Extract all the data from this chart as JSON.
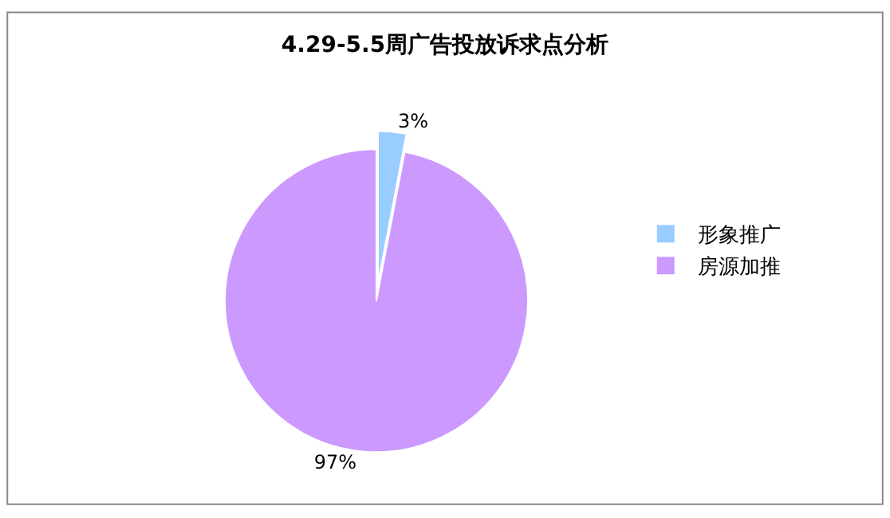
{
  "chart_data": {
    "type": "pie",
    "title": "4.29-5.5周广告投放诉求点分析",
    "categories": [
      "形象推广",
      "房源加推"
    ],
    "values": [
      3,
      97
    ],
    "colors": [
      "#99ccff",
      "#cc99ff"
    ],
    "value_labels": [
      "3%",
      "97%"
    ],
    "legend": "right"
  }
}
